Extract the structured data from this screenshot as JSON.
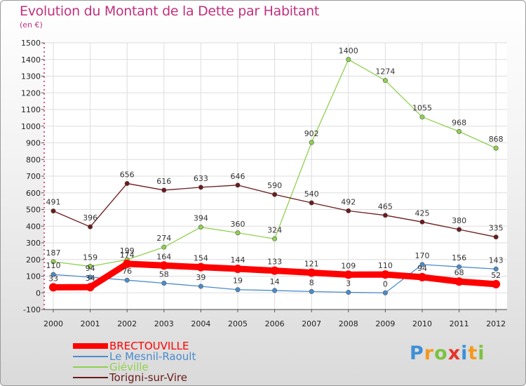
{
  "chart_data": {
    "type": "line",
    "title": "Evolution du Montant de la Dette par Habitant",
    "subtitle": "(en €)",
    "x": [
      "2000",
      "2001",
      "2002",
      "2003",
      "2004",
      "2005",
      "2006",
      "2007",
      "2008",
      "2009",
      "2010",
      "2011",
      "2012"
    ],
    "ylim": [
      -100,
      1500
    ],
    "yticks": [
      -100,
      0,
      100,
      200,
      300,
      400,
      500,
      600,
      700,
      800,
      900,
      1000,
      1100,
      1200,
      1300,
      1400,
      1500
    ],
    "grid": true,
    "legend_position": "bottom-left",
    "series": [
      {
        "name": "BRECTOUVILLE",
        "color": "#ff0000",
        "values": [
          33,
          34,
          174,
          164,
          154,
          144,
          133,
          121,
          109,
          110,
          94,
          68,
          52
        ]
      },
      {
        "name": "Le Mesnil-Raoult",
        "color": "#4a8ccc",
        "values": [
          110,
          94,
          76,
          58,
          39,
          19,
          14,
          8,
          3,
          0,
          170,
          156,
          143
        ]
      },
      {
        "name": "Giéville",
        "color": "#8fd14f",
        "values": [
          187,
          159,
          199,
          274,
          394,
          360,
          324,
          902,
          1400,
          1274,
          1055,
          968,
          868
        ]
      },
      {
        "name": "Torigni-sur-Vire",
        "color": "#6b1a1a",
        "values": [
          491,
          396,
          656,
          616,
          633,
          646,
          590,
          540,
          492,
          465,
          425,
          380,
          335
        ]
      }
    ]
  },
  "logo": {
    "text": "Proxiti",
    "letters": [
      "P",
      "r",
      "o",
      "x",
      "i",
      "t",
      "i"
    ]
  }
}
